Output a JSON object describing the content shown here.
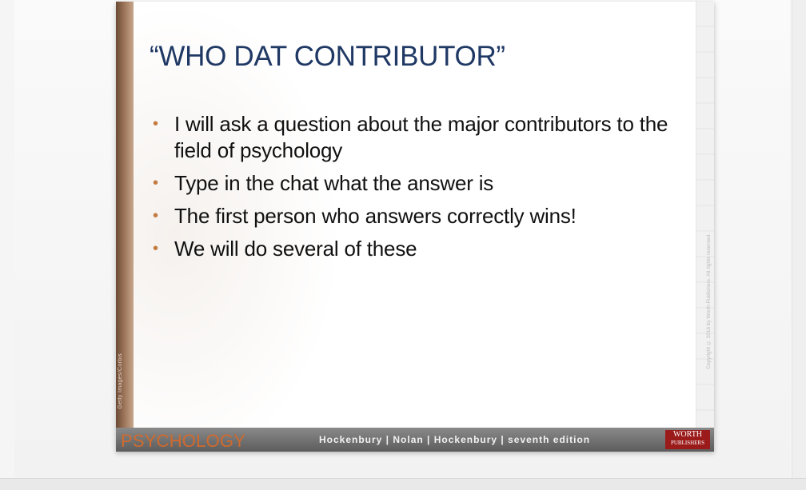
{
  "slide": {
    "title": "“WHO DAT CONTRIBUTOR”",
    "bullets": [
      "I will ask a question about the major contributors to the field of psychology",
      "Type in the chat what the answer is",
      "The first person who answers correctly wins!",
      "We will do several of these"
    ],
    "left_credit": "Getty Images/Corbis",
    "right_copyright": "Copyright © 2016 by Worth Publishers. All rights reserved.",
    "footer": {
      "brand": "PSYCHOLOGY",
      "authors": "Hockenbury | Nolan | Hockenbury |  seventh edition",
      "publisher_line1": "WORTH",
      "publisher_line2": "PUBLISHERS"
    }
  },
  "colors": {
    "title": "#1f3864",
    "bullet": "#c27a3f",
    "brand": "#d06a2e",
    "publisher_bg": "#9b1b1b"
  }
}
